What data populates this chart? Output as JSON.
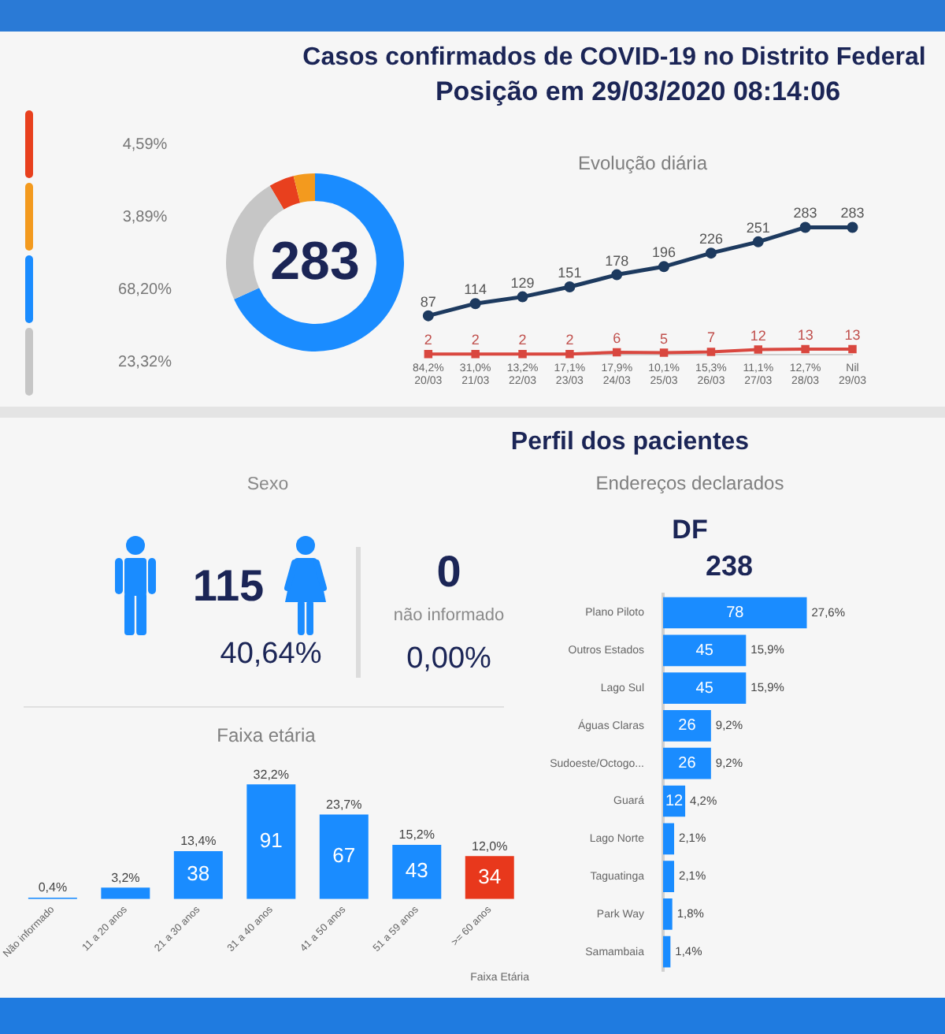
{
  "chart_data": [
    {
      "type": "other",
      "title": "Casos confirmados de COVID-19 no Distrito Federal",
      "subtitle": "Posição em 29/03/2020 08:14:06"
    },
    {
      "type": "donut",
      "categories": [
        null,
        null,
        null,
        null
      ],
      "values": [
        4.59,
        3.89,
        68.2,
        23.32
      ],
      "colors": [
        "#e8401e",
        "#f39a1e",
        "#1a8cff",
        "#c6c6c6"
      ],
      "annotations": [
        "4,59%",
        "3,89%",
        "68,20%",
        "23,32%",
        "283"
      ]
    },
    {
      "type": "line",
      "title": "Evolução diária",
      "categories": [
        "84,2%\n20/03",
        "31,0%\n21/03",
        "13,2%\n22/03",
        "17,1%\n23/03",
        "17,9%\n24/03",
        "10,1%\n25/03",
        "15,3%\n26/03",
        "11,1%\n27/03",
        "12,7%\n28/03",
        "Nil\n29/03"
      ],
      "series": [
        {
          "color": "#1d3a5f",
          "marker": "circle",
          "values": [
            87,
            114,
            129,
            151,
            178,
            196,
            226,
            251,
            283,
            283
          ]
        },
        {
          "color": "#d9473f",
          "marker": "square",
          "values": [
            2,
            2,
            2,
            2,
            6,
            5,
            7,
            12,
            13,
            13
          ]
        }
      ],
      "data_labels": true,
      "tick_labels": "x"
    },
    {
      "type": "other",
      "title": "Perfil dos pacientes"
    },
    {
      "type": "other",
      "title": "Sexo",
      "annotations": [
        "115",
        "40,64%",
        "0",
        "não informado",
        "0,00%"
      ]
    },
    {
      "type": "bar",
      "title": "Faixa etária",
      "categories": [
        "Não informado",
        "11 a 20 anos",
        "21 a 30 anos",
        "31 a 40 anos",
        "41 a 50 anos",
        "51 a 59 anos",
        ">= 60 anos"
      ],
      "values": [
        1,
        9,
        38,
        91,
        67,
        43,
        34
      ],
      "colors": [
        "#1a8cff",
        "#1a8cff",
        "#1a8cff",
        "#1a8cff",
        "#1a8cff",
        "#1a8cff",
        "#e8381c"
      ],
      "value_labels": [
        null,
        null,
        "38",
        "91",
        "67",
        "43",
        "34"
      ],
      "annotations": [
        {
          "text": "0,4%",
          "x": "Não informado",
          "y": 1
        },
        {
          "text": "3,2%",
          "x": "11 a 20 anos",
          "y": 9
        },
        {
          "text": "13,4%",
          "x": "21 a 30 anos",
          "y": 38
        },
        {
          "text": "32,2%",
          "x": "31 a 40 anos",
          "y": 91
        },
        {
          "text": "23,7%",
          "x": "41 a 50 anos",
          "y": 67
        },
        {
          "text": "15,2%",
          "x": "51 a 59 anos",
          "y": 43
        },
        {
          "text": "12,0%",
          "x": ">= 60 anos",
          "y": 34
        },
        "Faixa Etária"
      ],
      "tick_labels": "x"
    },
    {
      "type": "bar",
      "orientation": "horizontal",
      "title": "Endereços declarados",
      "subtitle": "DF",
      "categories": [
        "Plano Piloto",
        "Outros Estados",
        "Lago Sul",
        "Águas Claras",
        "Sudoeste/Octogo...",
        "Guará",
        "Lago Norte",
        "Taguatinga",
        "Park Way",
        "Samambaia"
      ],
      "values": [
        78,
        45,
        45,
        26,
        26,
        12,
        6,
        6,
        5,
        4
      ],
      "color": "#1a8cff",
      "value_labels": [
        "78",
        "45",
        "45",
        "26",
        "26",
        "12",
        null,
        null,
        null,
        null
      ],
      "annotations": [
        "238",
        {
          "text": "27,6%",
          "x": 78,
          "y": "Plano Piloto"
        },
        {
          "text": "15,9%",
          "x": 45,
          "y": "Outros Estados"
        },
        {
          "text": "15,9%",
          "x": 45,
          "y": "Lago Sul"
        },
        {
          "text": "9,2%",
          "x": 26,
          "y": "Águas Claras"
        },
        {
          "text": "9,2%",
          "x": 26,
          "y": "Sudoeste/Octogo..."
        },
        {
          "text": "4,2%",
          "x": 12,
          "y": "Guará"
        },
        {
          "text": "2,1%",
          "x": 6,
          "y": "Lago Norte"
        },
        {
          "text": "2,1%",
          "x": 6,
          "y": "Taguatinga"
        },
        {
          "text": "1,8%",
          "x": 5,
          "y": "Park Way"
        },
        {
          "text": "1,4%",
          "x": 4,
          "y": "Samambaia"
        }
      ],
      "tick_labels": "y"
    }
  ]
}
